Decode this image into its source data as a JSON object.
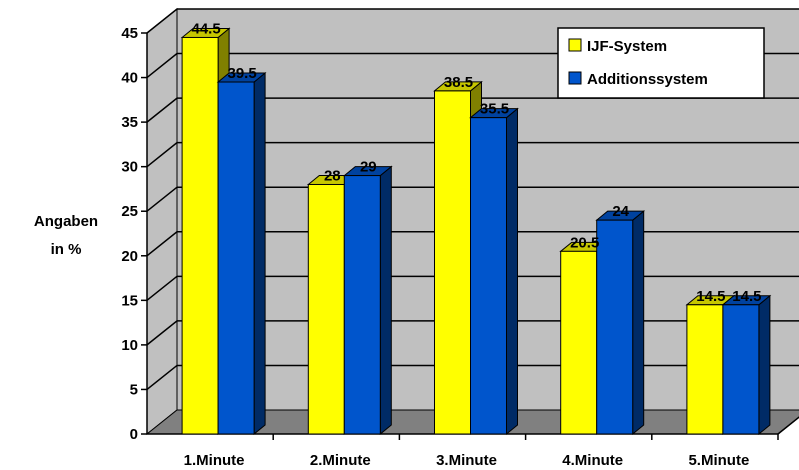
{
  "chart_data": {
    "type": "bar",
    "categories": [
      "1.Minute",
      "2.Minute",
      "3.Minute",
      "4.Minute",
      "5.Minute"
    ],
    "series": [
      {
        "name": "IJF-System",
        "values": [
          44.5,
          28,
          38.5,
          20.5,
          14.5
        ],
        "color": "#FFFF00"
      },
      {
        "name": "Additionssystem",
        "values": [
          39.5,
          29,
          35.5,
          24,
          14.5
        ],
        "color": "#0055CC"
      }
    ],
    "ylabel_lines": [
      "Angaben",
      "in %"
    ],
    "ylim": [
      0,
      45
    ],
    "yticks": [
      0,
      5,
      10,
      15,
      20,
      25,
      30,
      35,
      40,
      45
    ],
    "grid": true,
    "legend_position": "top-right",
    "wall_color": "#C0C0C0",
    "floor_color": "#808080"
  }
}
